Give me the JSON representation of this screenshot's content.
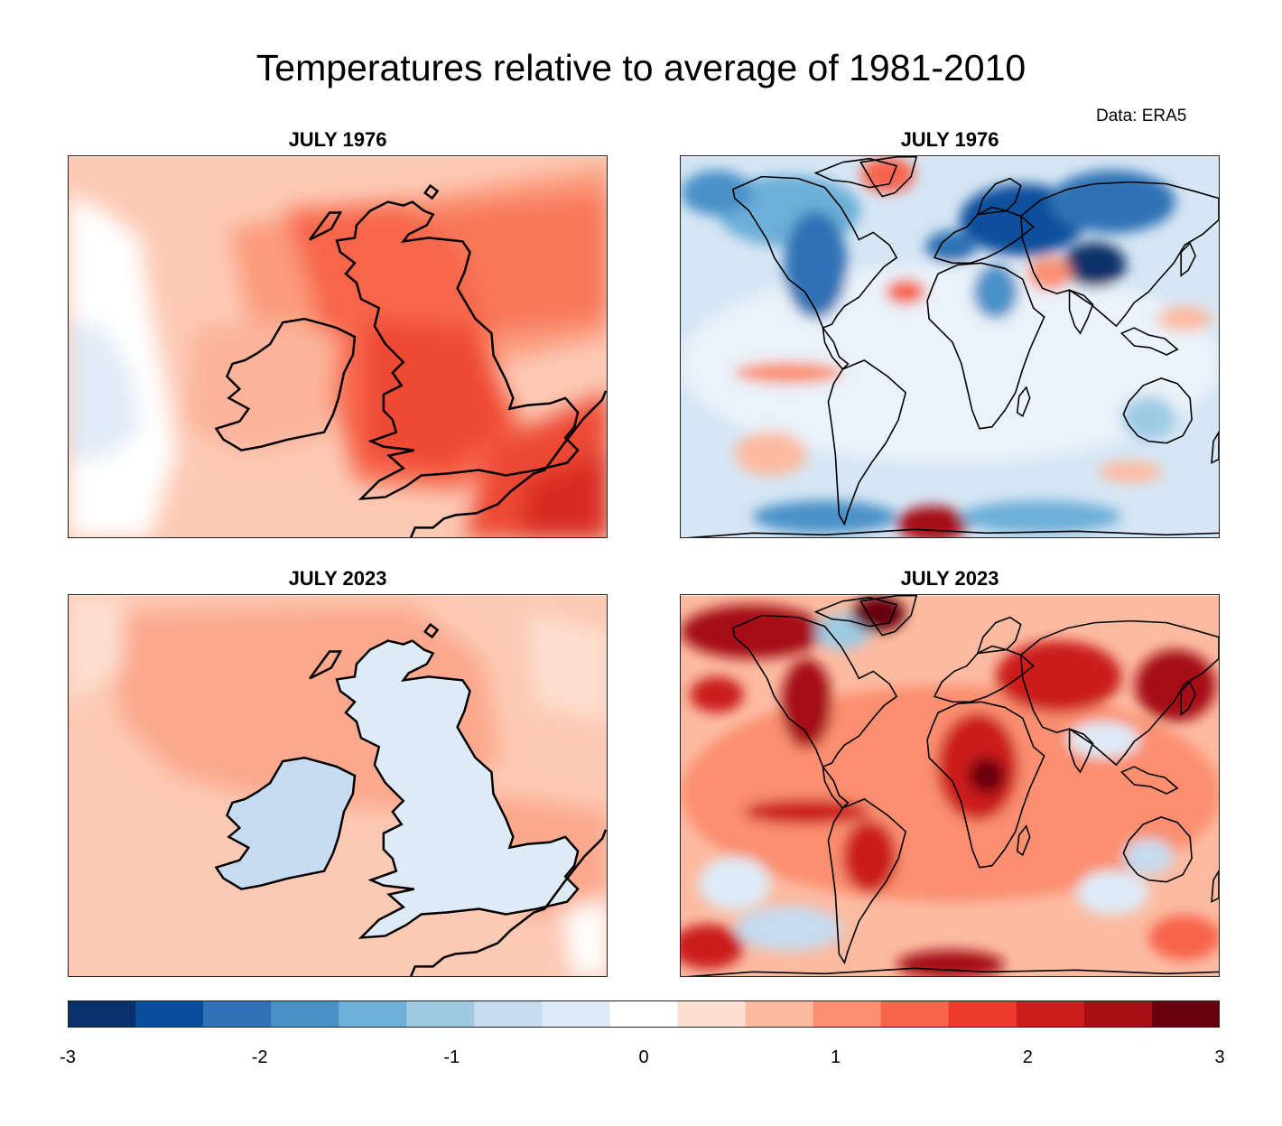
{
  "figure": {
    "title": "Temperatures relative to average of 1981-2010",
    "source": "Data: ERA5"
  },
  "panels": [
    {
      "title": "JULY 1976",
      "region": "british-isles"
    },
    {
      "title": "JULY 1976",
      "region": "world"
    },
    {
      "title": "JULY 2023",
      "region": "british-isles"
    },
    {
      "title": "JULY 2023",
      "region": "world"
    }
  ],
  "colorbar": {
    "min": -3,
    "max": 3,
    "tick_labels": [
      "-3",
      "-2",
      "-1",
      "0",
      "1",
      "2",
      "3"
    ],
    "colors": [
      "#08306b",
      "#0b4f9c",
      "#2f72b5",
      "#4a91c8",
      "#6dafd8",
      "#9fcae4",
      "#c6dbef",
      "#deebf7",
      "#ffffff",
      "#fde0d2",
      "#fcbba1",
      "#fb8f6f",
      "#f7644b",
      "#ec3a2d",
      "#cb1d1e",
      "#a50f15",
      "#67000d"
    ]
  },
  "chart_data": {
    "type": "map",
    "title": "Temperatures relative to average of 1981-2010",
    "variable": "temperature anomaly (°C)",
    "scale_range": [
      -3,
      3
    ],
    "maps": [
      {
        "panel": "JULY 1976",
        "region": "British Isles",
        "summary": "warm anomalies across Britain and Ireland, strongest over southern Britain and France (~+2)"
      },
      {
        "panel": "JULY 1976",
        "region": "World",
        "summary": "mostly cool anomalies, strong cold over northern Eurasia and Canada"
      },
      {
        "panel": "JULY 2023",
        "region": "British Isles",
        "summary": "near-average to slightly cool over Britain and Ireland, warm over surrounding seas"
      },
      {
        "panel": "JULY 2023",
        "region": "World",
        "summary": "widespread warm anomalies, strongest over North America, Africa and Asia"
      }
    ]
  }
}
